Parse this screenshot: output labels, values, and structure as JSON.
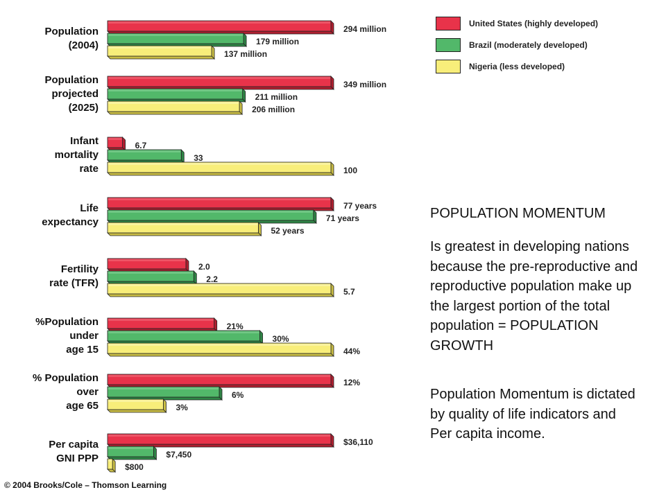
{
  "legend": {
    "items": [
      {
        "label": "United States (highly developed)",
        "color": "#e8334a"
      },
      {
        "label": "Brazil (moderately developed)",
        "color": "#52b86a"
      },
      {
        "label": "Nigeria (less developed)",
        "color": "#f8ee7a"
      }
    ]
  },
  "chart_data": {
    "type": "bar",
    "orientation": "horizontal",
    "series_names": [
      "United States (highly developed)",
      "Brazil (moderately developed)",
      "Nigeria (less developed)"
    ],
    "groups": [
      {
        "lines": [
          "Population",
          "(2004)"
        ],
        "values": [
          294,
          179,
          137
        ],
        "labels": [
          "294 million",
          "179 million",
          "137 million"
        ]
      },
      {
        "lines": [
          "Population",
          "projected",
          "(2025)"
        ],
        "values": [
          349,
          211,
          206
        ],
        "labels": [
          "349 million",
          "211 million",
          "206 million"
        ]
      },
      {
        "lines": [
          "Infant",
          "mortality",
          "rate"
        ],
        "values": [
          6.7,
          33,
          100
        ],
        "labels": [
          "6.7",
          "33",
          "100"
        ]
      },
      {
        "lines": [
          "Life",
          "expectancy"
        ],
        "values": [
          77,
          71,
          52
        ],
        "labels": [
          "77 years",
          "71 years",
          "52 years"
        ]
      },
      {
        "lines": [
          "Fertility",
          "rate (TFR)"
        ],
        "values": [
          2.0,
          2.2,
          5.7
        ],
        "labels": [
          "2.0",
          "2.2",
          "5.7"
        ]
      },
      {
        "lines": [
          "%Population",
          "under",
          "age 15"
        ],
        "values": [
          21,
          30,
          44
        ],
        "labels": [
          "21%",
          "30%",
          "44%"
        ]
      },
      {
        "lines": [
          "% Population",
          "over",
          "age 65"
        ],
        "values": [
          12,
          6,
          3
        ],
        "labels": [
          "12%",
          "6%",
          "3%"
        ]
      },
      {
        "lines": [
          "Per capita",
          "GNI PPP"
        ],
        "values": [
          36110,
          7450,
          800
        ],
        "labels": [
          "$36,110",
          "$7,450",
          "$800"
        ]
      }
    ]
  },
  "notes": {
    "heading": "POPULATION MOMENTUM",
    "paragraph1": "Is greatest in developing nations because the pre-reproductive and reproductive population make up the largest portion of the total population = POPULATION GROWTH",
    "paragraph2": "Population Momentum is dictated by quality of life indicators and Per capita income."
  },
  "credit": "© 2004 Brooks/Cole – Thomson Learning"
}
